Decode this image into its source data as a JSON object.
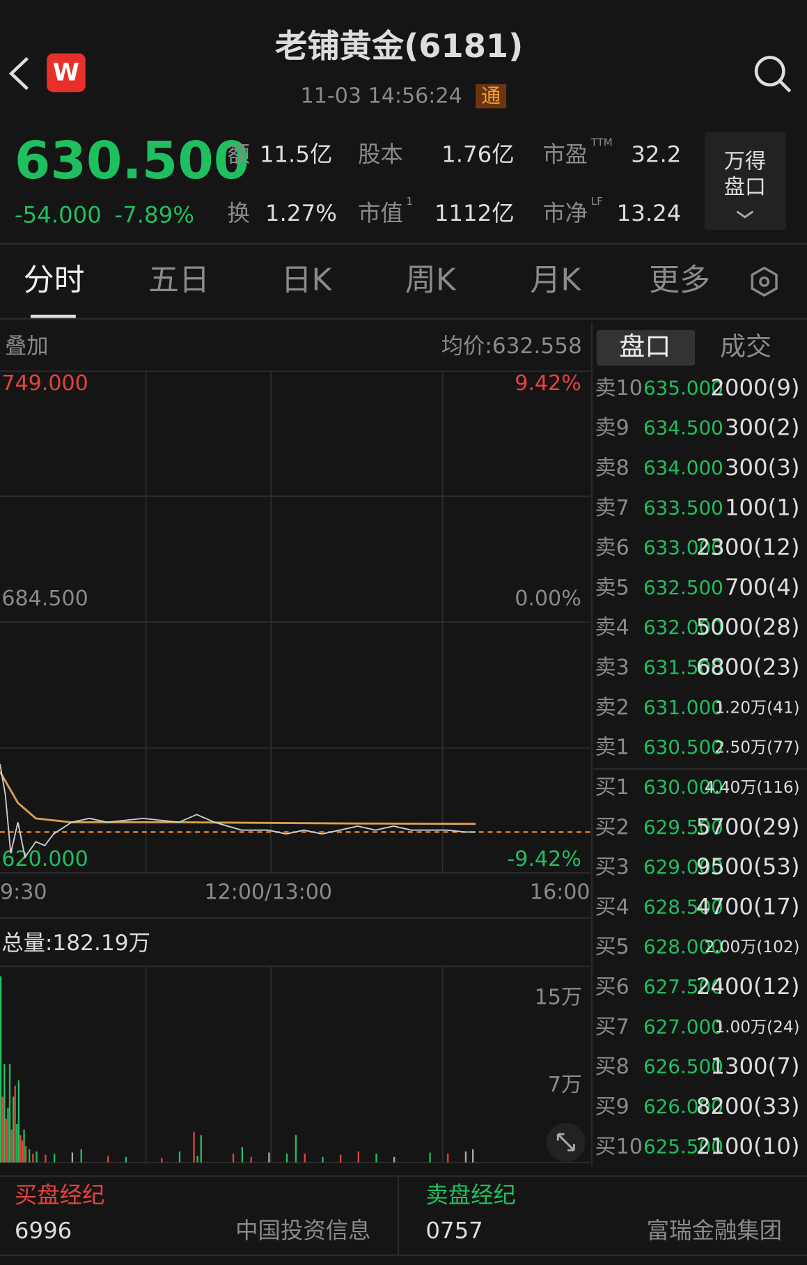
{
  "header": {
    "title": "老铺黄金(6181)",
    "time": "11-03 14:56:24",
    "badge": "通",
    "logo": "W"
  },
  "quote": {
    "price": "630.500",
    "change": "-54.000",
    "pct": "-7.89%",
    "stats": [
      {
        "label": "额",
        "value": "11.5亿"
      },
      {
        "label": "换",
        "value": "1.27%"
      },
      {
        "label": "股本",
        "value": "1.76亿"
      },
      {
        "label": "市值",
        "sup": "1",
        "value": "1112亿"
      },
      {
        "label": "市盈",
        "sup": "TTM",
        "value": "32.2"
      },
      {
        "label": "市净",
        "sup": "LF",
        "value": "13.24"
      }
    ],
    "panel": [
      "万得",
      "盘口"
    ]
  },
  "tabs": [
    "分时",
    "五日",
    "日K",
    "周K",
    "月K",
    "更多"
  ],
  "chart": {
    "type": "line",
    "overlay": "叠加",
    "avg_label": "均价:632.558",
    "xlim": [
      0,
      330
    ],
    "xticks": [
      {
        "value": 0,
        "label": "9:30"
      },
      {
        "value": 150,
        "label": "12:00/13:00"
      },
      {
        "value": 330,
        "label": "16:00"
      }
    ],
    "ylim": [
      620,
      749
    ],
    "yticks": [
      {
        "value": 749,
        "label": "749.000"
      },
      {
        "value": 684.5,
        "label": "684.500"
      },
      {
        "value": 620,
        "label": "620.000"
      }
    ],
    "pct_labels": [
      "9.42%",
      "0.00%",
      "-9.42%"
    ],
    "last": 630.5,
    "price": {
      "color": "#cfcfcf",
      "x": [
        0,
        3,
        6,
        10,
        14,
        20,
        25,
        30,
        40,
        50,
        60,
        80,
        100,
        110,
        120,
        135,
        150,
        160,
        170,
        180,
        190,
        200,
        210,
        220,
        230,
        240,
        250,
        260,
        266
      ],
      "values": [
        648,
        640,
        625,
        633,
        624,
        628,
        627,
        630,
        633,
        634,
        633,
        634,
        633,
        635,
        633,
        631,
        631,
        630,
        631,
        630,
        631,
        632,
        631,
        632,
        631,
        631,
        631,
        630.5,
        630.5
      ]
    },
    "avg": {
      "color": "#d9a050",
      "x": [
        0,
        10,
        20,
        40,
        100,
        200,
        266
      ],
      "values": [
        646,
        638,
        634,
        633,
        633,
        632.7,
        632.6
      ]
    },
    "volume": {
      "title": "总量:182.19万",
      "ylim": [
        0,
        179000
      ],
      "yticks": [
        {
          "value": 150000,
          "label": "15万"
        },
        {
          "value": 70000,
          "label": "7万"
        }
      ],
      "x": [
        0,
        1,
        2,
        3,
        4,
        5,
        6,
        7,
        8,
        9,
        10,
        11,
        12,
        13,
        14,
        16,
        18,
        20,
        25,
        30,
        40,
        45,
        60,
        70,
        90,
        100,
        108,
        110,
        112,
        130,
        135,
        140,
        150,
        160,
        165,
        170,
        180,
        190,
        200,
        210,
        220,
        240,
        250,
        260,
        264
      ],
      "values": [
        170000,
        60000,
        90000,
        40000,
        50000,
        90000,
        30000,
        60000,
        70000,
        35000,
        75000,
        25000,
        20000,
        30000,
        15000,
        12000,
        8000,
        10000,
        7000,
        8000,
        9000,
        12000,
        6000,
        5000,
        4000,
        10000,
        28000,
        6000,
        25000,
        8000,
        14000,
        5000,
        9000,
        8000,
        25000,
        8000,
        5000,
        7000,
        10000,
        8000,
        5000,
        9000,
        8000,
        10000,
        12000
      ],
      "colors": [
        "#1fbf5f",
        "#e8413c",
        "#1fbf5f",
        "#e8413c",
        "#1fbf5f",
        "#1fbf5f",
        "#e8413c",
        "#1fbf5f",
        "#e8413c",
        "#1fbf5f",
        "#1fbf5f",
        "#e8413c",
        "#e8413c",
        "#1fbf5f",
        "#e8413c",
        "#1fbf5f",
        "#e8413c",
        "#1fbf5f",
        "#e8413c",
        "#1fbf5f",
        "#aaaaaa",
        "#1fbf5f",
        "#e8413c",
        "#1fbf5f",
        "#e8413c",
        "#1fbf5f",
        "#e8413c",
        "#1fbf5f",
        "#1fbf5f",
        "#e8413c",
        "#1fbf5f",
        "#e8413c",
        "#aaaaaa",
        "#1fbf5f",
        "#1fbf5f",
        "#e8413c",
        "#1fbf5f",
        "#e8413c",
        "#e8413c",
        "#1fbf5f",
        "#aaaaaa",
        "#1fbf5f",
        "#e8413c",
        "#aaaaaa",
        "#aaaaaa"
      ]
    }
  },
  "order_book": {
    "tabs": [
      "盘口",
      "成交"
    ],
    "asks": [
      [
        "卖10",
        "635.000",
        "2000(9)"
      ],
      [
        "卖9",
        "634.500",
        "300(2)"
      ],
      [
        "卖8",
        "634.000",
        "300(3)"
      ],
      [
        "卖7",
        "633.500",
        "100(1)"
      ],
      [
        "卖6",
        "633.000",
        "2300(12)"
      ],
      [
        "卖5",
        "632.500",
        "700(4)"
      ],
      [
        "卖4",
        "632.000",
        "5000(28)"
      ],
      [
        "卖3",
        "631.500",
        "6800(23)"
      ],
      [
        "卖2",
        "631.000",
        "1.20万(41)"
      ],
      [
        "卖1",
        "630.500",
        "2.50万(77)"
      ]
    ],
    "bids": [
      [
        "买1",
        "630.000",
        "4.40万(116)"
      ],
      [
        "买2",
        "629.500",
        "5700(29)"
      ],
      [
        "买3",
        "629.000",
        "9500(53)"
      ],
      [
        "买4",
        "628.500",
        "4700(17)"
      ],
      [
        "买5",
        "628.000",
        "2.00万(102)"
      ],
      [
        "买6",
        "627.500",
        "2400(12)"
      ],
      [
        "买7",
        "627.000",
        "1.00万(24)"
      ],
      [
        "买8",
        "626.500",
        "1300(7)"
      ],
      [
        "买9",
        "626.000",
        "8200(33)"
      ],
      [
        "买10",
        "625.500",
        "2100(10)"
      ]
    ]
  },
  "brokers": {
    "buy": {
      "title": "买盘经纪",
      "code": "6996",
      "name": "中国投资信息"
    },
    "sell": {
      "title": "卖盘经纪",
      "code": "0757",
      "name": "富瑞金融集团"
    }
  }
}
